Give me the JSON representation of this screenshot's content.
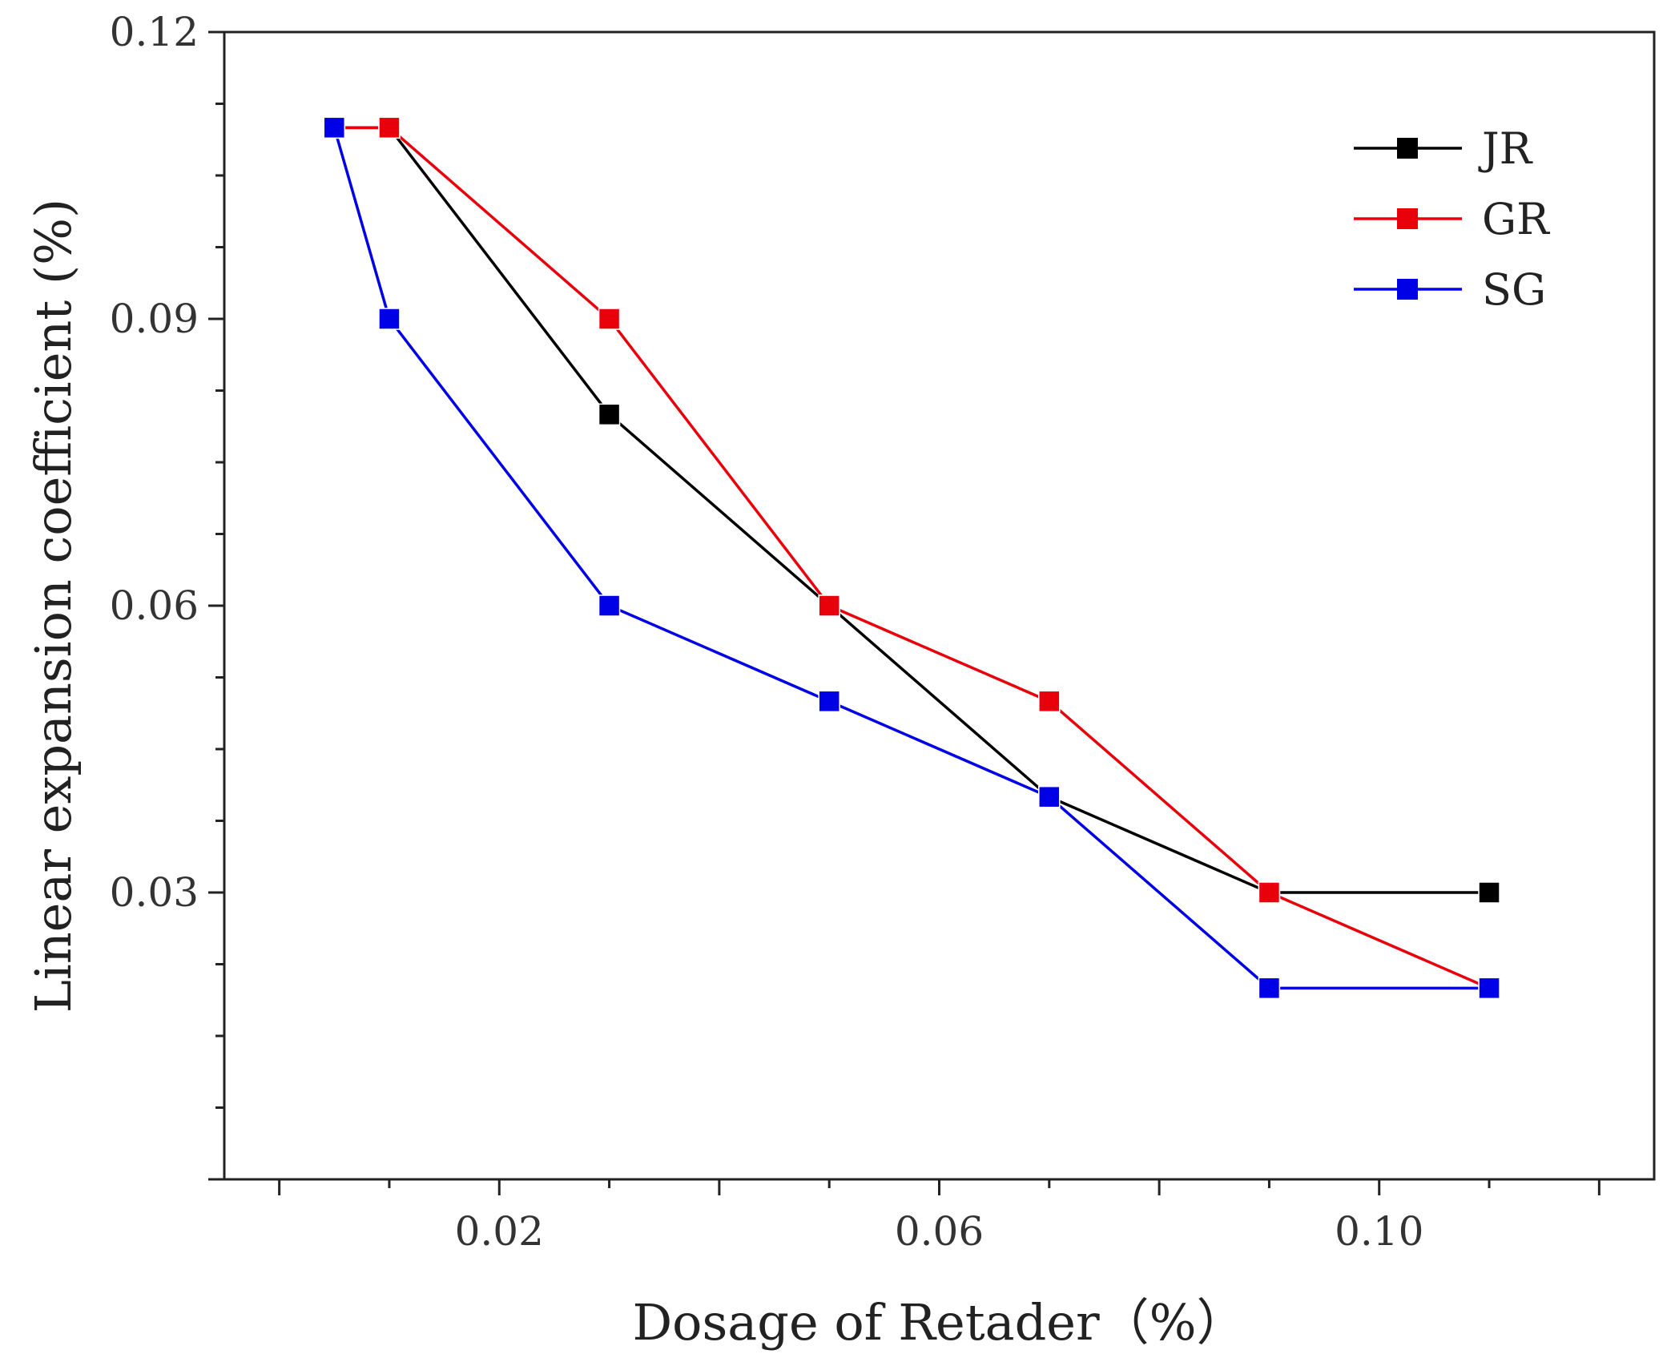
{
  "chart_data": {
    "type": "line",
    "title": "",
    "xlabel": "Dosage of Retader（%）",
    "ylabel": "Linear expansion coefficient (%)",
    "xlim": [
      -0.005,
      0.125
    ],
    "ylim": [
      0.0,
      0.12
    ],
    "x_ticks": [
      0.02,
      0.06,
      0.1
    ],
    "x_tick_labels": [
      "0.02",
      "0.06",
      "0.10"
    ],
    "y_ticks": [
      0.03,
      0.06,
      0.09,
      0.12
    ],
    "y_tick_labels": [
      "0.03",
      "0.06",
      "0.09",
      "0.12"
    ],
    "x": [
      0.005,
      0.01,
      0.03,
      0.05,
      0.07,
      0.09,
      0.11
    ],
    "series": [
      {
        "name": "JR",
        "color": "#000000",
        "values": [
          0.11,
          0.11,
          0.08,
          0.06,
          0.04,
          0.03,
          0.03
        ]
      },
      {
        "name": "GR",
        "color": "#e8000b",
        "values": [
          0.11,
          0.11,
          0.09,
          0.06,
          0.05,
          0.03,
          0.02
        ]
      },
      {
        "name": "SG",
        "color": "#0000e6",
        "values": [
          0.11,
          0.09,
          0.06,
          0.05,
          0.04,
          0.02,
          0.02
        ]
      }
    ],
    "grid": false,
    "legend_position": "top-right"
  }
}
